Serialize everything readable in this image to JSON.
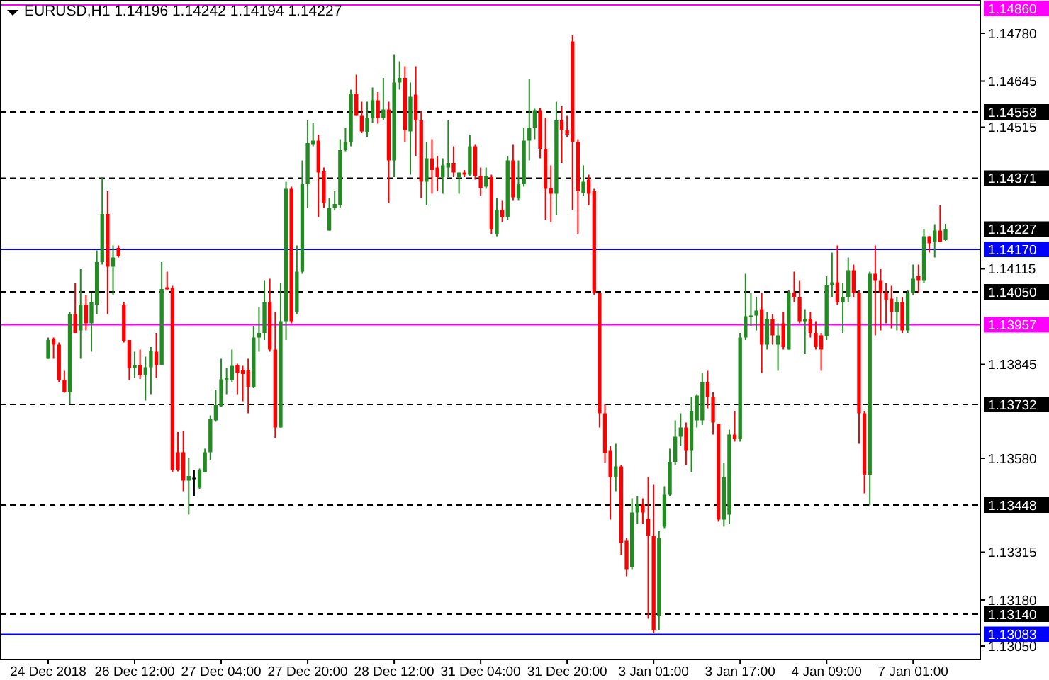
{
  "chart_data": {
    "type": "candlestick",
    "title": "EURUSD,H1  1.14196 1.14242 1.14194 1.14227",
    "categories": [
      "24 Dec 2018",
      null,
      null,
      null,
      null,
      null,
      null,
      null,
      null,
      null,
      null,
      null,
      null,
      null,
      null,
      null,
      "26 Dec 12:00",
      null,
      null,
      null,
      null,
      null,
      null,
      null,
      null,
      null,
      null,
      null,
      null,
      null,
      null,
      null,
      "27 Dec 04:00",
      null,
      null,
      null,
      null,
      null,
      null,
      null,
      null,
      null,
      null,
      null,
      null,
      null,
      null,
      null,
      "27 Dec 20:00",
      null,
      null,
      null,
      null,
      null,
      null,
      null,
      null,
      null,
      null,
      null,
      null,
      null,
      null,
      null,
      "28 Dec 12:00",
      null,
      null,
      null,
      null,
      null,
      null,
      null,
      null,
      null,
      null,
      null,
      null,
      null,
      null,
      null,
      "31 Dec 04:00",
      null,
      null,
      null,
      null,
      null,
      null,
      null,
      null,
      null,
      null,
      null,
      null,
      null,
      null,
      null,
      "31 Dec 20:00",
      null,
      null,
      null,
      null,
      null,
      null,
      null,
      null,
      null,
      null,
      null,
      null,
      null,
      null,
      null,
      "3 Jan 01:00",
      null,
      null,
      null,
      null,
      null,
      null,
      null,
      null,
      null,
      null,
      null,
      null,
      null,
      null,
      null,
      "3 Jan 17:00",
      null,
      null,
      null,
      null,
      null,
      null,
      null,
      null,
      null,
      null,
      null,
      null,
      null,
      null,
      null,
      "4 Jan 09:00",
      null,
      null,
      null,
      null,
      null,
      null,
      null,
      null,
      null,
      null,
      null,
      null,
      null,
      null,
      null,
      "7 Jan 01:00",
      null,
      null,
      null,
      null,
      null,
      null
    ],
    "ohlc": [
      [
        1.13861,
        1.13921,
        1.13861,
        1.13914
      ],
      [
        1.13917,
        1.13921,
        1.13861,
        1.13901
      ],
      [
        1.13901,
        1.13907,
        1.13794,
        1.13801
      ],
      [
        1.13801,
        1.13827,
        1.13765,
        1.13767
      ],
      [
        1.13767,
        1.13994,
        1.13734,
        1.13987
      ],
      [
        1.13987,
        1.14074,
        1.13934,
        1.13934
      ],
      [
        1.13941,
        1.14114,
        1.13861,
        1.14014
      ],
      [
        1.14014,
        1.14041,
        1.13941,
        1.13961
      ],
      [
        1.13961,
        1.14047,
        1.13881,
        1.14021
      ],
      [
        1.14014,
        1.14167,
        1.13987,
        1.14134
      ],
      [
        1.14134,
        1.14374,
        1.14127,
        1.1427
      ],
      [
        1.1427,
        1.14334,
        1.13987,
        1.14121
      ],
      [
        1.14121,
        1.14181,
        1.14041,
        1.14147
      ],
      [
        1.14174,
        1.14181,
        1.14147,
        1.1415
      ],
      [
        1.14014,
        1.14021,
        1.13907,
        1.13911
      ],
      [
        1.13914,
        1.13914,
        1.13801,
        1.13834
      ],
      [
        1.13834,
        1.13881,
        1.13807,
        1.13843
      ],
      [
        1.13843,
        1.13887,
        1.13804,
        1.13814
      ],
      [
        1.13814,
        1.13867,
        1.13743,
        1.13837
      ],
      [
        1.13837,
        1.13894,
        1.13761,
        1.13883
      ],
      [
        1.13881,
        1.13934,
        1.13807,
        1.13843
      ],
      [
        1.13843,
        1.14134,
        1.13843,
        1.14058
      ],
      [
        1.14063,
        1.14107,
        1.14054,
        1.14057
      ],
      [
        1.14061,
        1.14067,
        1.13541,
        1.13547
      ],
      [
        1.13597,
        1.13654,
        1.13543,
        1.13547
      ],
      [
        1.13597,
        1.13658,
        1.13487,
        1.13517
      ],
      [
        1.13517,
        1.13581,
        1.13421,
        1.1353
      ],
      [
        1.13525,
        1.13547,
        1.13474,
        1.13525
      ],
      [
        1.13497,
        1.13551,
        1.13494,
        1.13547
      ],
      [
        1.13541,
        1.13607,
        1.13541,
        1.13597
      ],
      [
        1.13597,
        1.13701,
        1.13574,
        1.1369
      ],
      [
        1.13687,
        1.13774,
        1.13683,
        1.1373
      ],
      [
        1.13727,
        1.13861,
        1.13725,
        1.13803
      ],
      [
        1.13801,
        1.13834,
        1.13761,
        1.13807
      ],
      [
        1.13801,
        1.13887,
        1.13794,
        1.13841
      ],
      [
        1.13843,
        1.13847,
        1.13761,
        1.13821
      ],
      [
        1.1383,
        1.13841,
        1.13741,
        1.13818
      ],
      [
        1.1383,
        1.13861,
        1.13707,
        1.13781
      ],
      [
        1.13781,
        1.13954,
        1.13778,
        1.13921
      ],
      [
        1.13921,
        1.14007,
        1.13881,
        1.13934
      ],
      [
        1.13934,
        1.14081,
        1.13914,
        1.14021
      ],
      [
        1.14021,
        1.14087,
        1.13881,
        1.13887
      ],
      [
        1.13887,
        1.13994,
        1.13637,
        1.13667
      ],
      [
        1.13667,
        1.14074,
        1.13667,
        1.13967
      ],
      [
        1.13967,
        1.14361,
        1.13914,
        1.14341
      ],
      [
        1.14341,
        1.14347,
        1.13961,
        1.13967
      ],
      [
        1.13994,
        1.14181,
        1.13987,
        1.14107
      ],
      [
        1.14107,
        1.14421,
        1.14101,
        1.14354
      ],
      [
        1.14354,
        1.14534,
        1.14287,
        1.1447
      ],
      [
        1.14467,
        1.14527,
        1.14461,
        1.14477
      ],
      [
        1.14477,
        1.14494,
        1.14261,
        1.14387
      ],
      [
        1.1439,
        1.14401,
        1.14287,
        1.14301
      ],
      [
        1.14223,
        1.14314,
        1.14223,
        1.14287
      ],
      [
        1.14287,
        1.14334,
        1.14281,
        1.14298
      ],
      [
        1.14294,
        1.14481,
        1.14287,
        1.1445
      ],
      [
        1.1445,
        1.14514,
        1.14447,
        1.14474
      ],
      [
        1.14474,
        1.14621,
        1.14461,
        1.1461
      ],
      [
        1.1461,
        1.14663,
        1.14547,
        1.14547
      ],
      [
        1.14547,
        1.14587,
        1.14498,
        1.14503
      ],
      [
        1.14501,
        1.14587,
        1.14487,
        1.14541
      ],
      [
        1.14541,
        1.14627,
        1.14527,
        1.14591
      ],
      [
        1.14591,
        1.14614,
        1.14525,
        1.14541
      ],
      [
        1.14541,
        1.14654,
        1.14534,
        1.14565
      ],
      [
        1.14565,
        1.14587,
        1.14301,
        1.14421
      ],
      [
        1.14421,
        1.14721,
        1.14374,
        1.14641
      ],
      [
        1.14641,
        1.14701,
        1.14621,
        1.14654
      ],
      [
        1.14654,
        1.14687,
        1.14474,
        1.14507
      ],
      [
        1.14503,
        1.14641,
        1.14381,
        1.14601
      ],
      [
        1.14607,
        1.14687,
        1.14434,
        1.14534
      ],
      [
        1.14534,
        1.14561,
        1.14314,
        1.14361
      ],
      [
        1.14361,
        1.14474,
        1.14294,
        1.14427
      ],
      [
        1.14427,
        1.14481,
        1.14327,
        1.14394
      ],
      [
        1.14401,
        1.14434,
        1.14334,
        1.14374
      ],
      [
        1.14374,
        1.14427,
        1.14327,
        1.14407
      ],
      [
        1.14401,
        1.14534,
        1.14374,
        1.14414
      ],
      [
        1.14414,
        1.14461,
        1.14374,
        1.14387
      ],
      [
        1.14374,
        1.14387,
        1.14327,
        1.14387
      ],
      [
        1.14387,
        1.14394,
        1.14374,
        1.14381
      ],
      [
        1.14381,
        1.14494,
        1.14378,
        1.14461
      ],
      [
        1.14461,
        1.14467,
        1.14367,
        1.14378
      ],
      [
        1.14378,
        1.14401,
        1.14321,
        1.14343
      ],
      [
        1.14347,
        1.14401,
        1.14341,
        1.14378
      ],
      [
        1.14374,
        1.14381,
        1.14214,
        1.14227
      ],
      [
        1.14214,
        1.14314,
        1.14207,
        1.14281
      ],
      [
        1.14281,
        1.14307,
        1.14247,
        1.14261
      ],
      [
        1.14261,
        1.14434,
        1.14254,
        1.14421
      ],
      [
        1.14421,
        1.14467,
        1.14307,
        1.14317
      ],
      [
        1.14314,
        1.14421,
        1.14307,
        1.14354
      ],
      [
        1.14354,
        1.14514,
        1.14347,
        1.14477
      ],
      [
        1.14477,
        1.1465,
        1.14421,
        1.14514
      ],
      [
        1.14514,
        1.14567,
        1.14481,
        1.14563
      ],
      [
        1.14563,
        1.1457,
        1.14427,
        1.14454
      ],
      [
        1.14454,
        1.14541,
        1.14254,
        1.14341
      ],
      [
        1.14343,
        1.14407,
        1.14247,
        1.14327
      ],
      [
        1.14327,
        1.14587,
        1.14267,
        1.14534
      ],
      [
        1.14534,
        1.14574,
        1.14414,
        1.14507
      ],
      [
        1.14507,
        1.14547,
        1.14487,
        1.14494
      ],
      [
        1.14757,
        1.14774,
        1.14281,
        1.14474
      ],
      [
        1.14474,
        1.14481,
        1.14214,
        1.14334
      ],
      [
        1.1433,
        1.14407,
        1.14321,
        1.14361
      ],
      [
        1.14367,
        1.14381,
        1.14294,
        1.14327
      ],
      [
        1.14334,
        1.14341,
        1.14041,
        1.14047
      ],
      [
        1.14047,
        1.14047,
        1.13667,
        1.13707
      ],
      [
        1.13707,
        1.13734,
        1.13567,
        1.13594
      ],
      [
        1.13601,
        1.13614,
        1.13407,
        1.13527
      ],
      [
        1.13527,
        1.13621,
        1.13487,
        1.13557
      ],
      [
        1.13557,
        1.13561,
        1.13307,
        1.13341
      ],
      [
        1.13347,
        1.13354,
        1.13247,
        1.13267
      ],
      [
        1.13274,
        1.13467,
        1.13267,
        1.13427
      ],
      [
        1.13427,
        1.13474,
        1.13394,
        1.1345
      ],
      [
        1.1345,
        1.13467,
        1.13394,
        1.13427
      ],
      [
        1.1341,
        1.13527,
        1.13127,
        1.13361
      ],
      [
        1.13361,
        1.13507,
        1.13087,
        1.13094
      ],
      [
        1.13134,
        1.13374,
        1.13094,
        1.13354
      ],
      [
        1.13387,
        1.13501,
        1.13381,
        1.13477
      ],
      [
        1.13477,
        1.13607,
        1.13474,
        1.1357
      ],
      [
        1.1357,
        1.13687,
        1.13561,
        1.13641
      ],
      [
        1.13641,
        1.13707,
        1.13614,
        1.13667
      ],
      [
        1.13667,
        1.13681,
        1.13561,
        1.13601
      ],
      [
        1.13601,
        1.13754,
        1.13541,
        1.13714
      ],
      [
        1.13687,
        1.13761,
        1.13667,
        1.13757
      ],
      [
        1.13687,
        1.13821,
        1.13674,
        1.13794
      ],
      [
        1.13794,
        1.13827,
        1.13721,
        1.13754
      ],
      [
        1.13754,
        1.13767,
        1.13647,
        1.13681
      ],
      [
        1.13677,
        1.13677,
        1.13401,
        1.13407
      ],
      [
        1.13407,
        1.13567,
        1.13387,
        1.13527
      ],
      [
        1.13421,
        1.13661,
        1.13394,
        1.13647
      ],
      [
        1.13647,
        1.13714,
        1.13627,
        1.13634
      ],
      [
        1.13634,
        1.13934,
        1.13627,
        1.13921
      ],
      [
        1.13921,
        1.14101,
        1.13914,
        1.13981
      ],
      [
        1.13981,
        1.14047,
        1.13954,
        1.13983
      ],
      [
        1.13983,
        1.14034,
        1.13941,
        1.13997
      ],
      [
        1.14001,
        1.14047,
        1.13821,
        1.13901
      ],
      [
        1.13901,
        1.13994,
        1.13887,
        1.13974
      ],
      [
        1.13974,
        1.13987,
        1.13901,
        1.13927
      ],
      [
        1.13901,
        1.13961,
        1.13827,
        1.13927
      ],
      [
        1.13961,
        1.13994,
        1.13887,
        1.13894
      ],
      [
        1.13887,
        1.14054,
        1.13887,
        1.14047
      ],
      [
        1.14047,
        1.14107,
        1.14021,
        1.14034
      ],
      [
        1.14034,
        1.14081,
        1.13961,
        1.13967
      ],
      [
        1.13967,
        1.14001,
        1.13874,
        1.13974
      ],
      [
        1.13974,
        1.13994,
        1.13921,
        1.13934
      ],
      [
        1.13934,
        1.13967,
        1.13887,
        1.13894
      ],
      [
        1.13927,
        1.13934,
        1.13827,
        1.13887
      ],
      [
        1.13925,
        1.14094,
        1.13914,
        1.1407
      ],
      [
        1.1407,
        1.14161,
        1.14034,
        1.14077
      ],
      [
        1.14077,
        1.14181,
        1.14014,
        1.14021
      ],
      [
        1.14021,
        1.14074,
        1.13934,
        1.14034
      ],
      [
        1.14034,
        1.14147,
        1.14021,
        1.14111
      ],
      [
        1.14111,
        1.14127,
        1.14034,
        1.14047
      ],
      [
        1.14047,
        1.14054,
        1.13621,
        1.13707
      ],
      [
        1.13707,
        1.13714,
        1.13481,
        1.13534
      ],
      [
        1.13534,
        1.14107,
        1.13447,
        1.14101
      ],
      [
        1.14101,
        1.14181,
        1.13927,
        1.14081
      ],
      [
        1.14081,
        1.14114,
        1.13941,
        1.14047
      ],
      [
        1.14047,
        1.14074,
        1.13961,
        1.14027
      ],
      [
        1.14031,
        1.14067,
        1.13947,
        1.13994
      ],
      [
        1.13994,
        1.14034,
        1.13941,
        1.14021
      ],
      [
        1.14021,
        1.14034,
        1.13934,
        1.13941
      ],
      [
        1.13941,
        1.14054,
        1.13934,
        1.14047
      ],
      [
        1.14047,
        1.14127,
        1.14041,
        1.14087
      ],
      [
        1.14094,
        1.14127,
        1.14047,
        1.14081
      ],
      [
        1.14081,
        1.14227,
        1.14074,
        1.14207
      ],
      [
        1.14207,
        1.14207,
        1.14161,
        1.14187
      ],
      [
        1.14191,
        1.14241,
        1.14147,
        1.14223
      ],
      [
        1.14223,
        1.14294,
        1.14191,
        1.14191
      ],
      [
        1.14196,
        1.14242,
        1.14194,
        1.14227
      ]
    ],
    "colors": [
      "#228b22",
      "#ff0000",
      "#ff0000",
      "#ff0000",
      "#228b22",
      "#ff0000",
      "#228b22",
      "#ff0000",
      "#228b22",
      "#228b22",
      "#228b22",
      "#ff0000",
      "#228b22",
      "#ff0000",
      "#ff0000",
      "#ff0000",
      "#228b22",
      "#ff0000",
      "#228b22",
      "#228b22",
      "#ff0000",
      "#228b22",
      "#ff0000",
      "#ff0000",
      "#ff0000",
      "#ff0000",
      "#228b22",
      "#000000",
      "#228b22",
      "#228b22",
      "#228b22",
      "#228b22",
      "#228b22",
      "#228b22",
      "#228b22",
      "#ff0000",
      "#ff0000",
      "#ff0000",
      "#228b22",
      "#228b22",
      "#228b22",
      "#ff0000",
      "#ff0000",
      "#228b22",
      "#228b22",
      "#ff0000",
      "#228b22",
      "#228b22",
      "#228b22",
      "#228b22",
      "#ff0000",
      "#ff0000",
      "#228b22",
      "#228b22",
      "#228b22",
      "#228b22",
      "#228b22",
      "#ff0000",
      "#ff0000",
      "#228b22",
      "#228b22",
      "#ff0000",
      "#228b22",
      "#ff0000",
      "#228b22",
      "#228b22",
      "#ff0000",
      "#228b22",
      "#ff0000",
      "#ff0000",
      "#228b22",
      "#ff0000",
      "#ff0000",
      "#228b22",
      "#228b22",
      "#ff0000",
      "#228b22",
      "#ff0000",
      "#228b22",
      "#ff0000",
      "#ff0000",
      "#228b22",
      "#ff0000",
      "#228b22",
      "#ff0000",
      "#228b22",
      "#ff0000",
      "#228b22",
      "#228b22",
      "#228b22",
      "#228b22",
      "#ff0000",
      "#ff0000",
      "#ff0000",
      "#228b22",
      "#ff0000",
      "#ff0000",
      "#ff0000",
      "#ff0000",
      "#228b22",
      "#ff0000",
      "#ff0000",
      "#ff0000",
      "#ff0000",
      "#ff0000",
      "#228b22",
      "#ff0000",
      "#ff0000",
      "#228b22",
      "#228b22",
      "#ff0000",
      "#ff0000",
      "#ff0000",
      "#228b22",
      "#228b22",
      "#228b22",
      "#228b22",
      "#228b22",
      "#ff0000",
      "#228b22",
      "#228b22",
      "#228b22",
      "#ff0000",
      "#ff0000",
      "#ff0000",
      "#228b22",
      "#228b22",
      "#ff0000",
      "#228b22",
      "#228b22",
      "#228b22",
      "#228b22",
      "#ff0000",
      "#228b22",
      "#ff0000",
      "#228b22",
      "#ff0000",
      "#228b22",
      "#ff0000",
      "#ff0000",
      "#228b22",
      "#ff0000",
      "#ff0000",
      "#ff0000",
      "#228b22",
      "#228b22",
      "#ff0000",
      "#228b22",
      "#228b22",
      "#ff0000",
      "#ff0000",
      "#ff0000",
      "#228b22",
      "#ff0000",
      "#ff0000",
      "#ff0000",
      "#ff0000",
      "#228b22",
      "#ff0000",
      "#228b22",
      "#228b22",
      "#ff0000",
      "#228b22",
      "#ff0000",
      "#228b22",
      "#ff0000",
      "#228b22"
    ],
    "ylim": [
      1.1301,
      1.14862
    ],
    "yticks": [
      {
        "value": 1.1305,
        "label": "1.13050"
      },
      {
        "value": 1.1318,
        "label": "1.13180"
      },
      1.13315,
      {
        "value": 1.1358,
        "label": "1.13580"
      },
      1.13845,
      1.14115,
      1.14515,
      1.14645,
      {
        "value": 1.1478,
        "label": "1.14780"
      }
    ],
    "ref_lines": [
      {
        "axis": "y",
        "value": 1.1486,
        "label": "1.14860",
        "color": "#ff00ff",
        "line_style": "solid"
      },
      {
        "axis": "y",
        "value": 1.14558,
        "label": "1.14558",
        "color": "#000000",
        "line_style": "dashed"
      },
      {
        "axis": "y",
        "value": 1.14371,
        "label": "1.14371",
        "color": "#000000",
        "line_style": "dashed"
      },
      {
        "axis": "y",
        "value": 1.1417,
        "label": "1.14170",
        "color": "#0000ff",
        "line_style": "solid"
      },
      {
        "axis": "y",
        "value": 1.1405,
        "label": "1.14050",
        "color": "#000000",
        "line_style": "dashed"
      },
      {
        "axis": "y",
        "value": 1.13957,
        "label": "1.13957",
        "color": "#ff00ff",
        "line_style": "solid"
      },
      {
        "axis": "y",
        "value": 1.13732,
        "label": "1.13732",
        "color": "#000000",
        "line_style": "dashed"
      },
      {
        "axis": "y",
        "value": 1.13448,
        "label": "1.13448",
        "color": "#000000",
        "line_style": "dashed"
      },
      {
        "axis": "y",
        "value": 1.1314,
        "label": "1.13140",
        "color": "#000000",
        "line_style": "dashed"
      },
      {
        "axis": "y",
        "value": 1.13083,
        "label": "1.13083",
        "color": "#0000ff",
        "line_style": "solid"
      }
    ],
    "annotations": [
      "1.14227"
    ],
    "grid": false
  }
}
